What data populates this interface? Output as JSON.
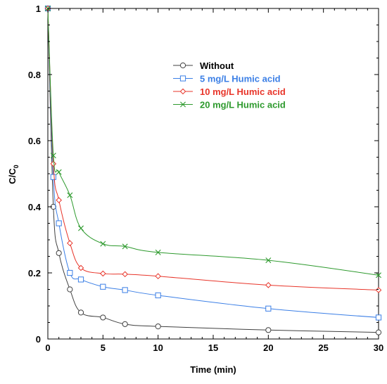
{
  "chart_data": {
    "type": "line",
    "xlabel": "Time (min)",
    "ylabel": "C/C",
    "ylabel_subscript": "0",
    "xlim": [
      0,
      30
    ],
    "ylim": [
      0,
      1
    ],
    "xticks": [
      0,
      5,
      10,
      15,
      20,
      25,
      30
    ],
    "yticks": [
      0,
      0.2,
      0.4,
      0.6,
      0.8,
      1
    ],
    "ytick_labels": [
      "0",
      "0.2",
      "0.4",
      "0.6",
      "0.8",
      "1"
    ],
    "grid": false,
    "legend_position": "top-right",
    "series": [
      {
        "name": "Without",
        "color": "#404040",
        "marker": "circle",
        "x": [
          0,
          0.5,
          1,
          2,
          3,
          5,
          7,
          10,
          20,
          30
        ],
        "y": [
          1.0,
          0.4,
          0.26,
          0.15,
          0.08,
          0.065,
          0.045,
          0.038,
          0.027,
          0.02
        ]
      },
      {
        "name": "5 mg/L Humic acid",
        "color": "#3b7fe6",
        "marker": "square",
        "x": [
          0,
          0.5,
          1,
          2,
          3,
          5,
          7,
          10,
          20,
          30
        ],
        "y": [
          1.0,
          0.49,
          0.35,
          0.2,
          0.18,
          0.158,
          0.148,
          0.132,
          0.092,
          0.065
        ]
      },
      {
        "name": "10 mg/L Humic acid",
        "color": "#e8352a",
        "marker": "diamond",
        "x": [
          0,
          0.5,
          1,
          2,
          3,
          5,
          7,
          10,
          20,
          30
        ],
        "y": [
          1.0,
          0.53,
          0.42,
          0.29,
          0.215,
          0.198,
          0.196,
          0.19,
          0.163,
          0.148
        ]
      },
      {
        "name": "20 mg/L Humic acid",
        "color": "#2e9a2e",
        "marker": "x",
        "x": [
          0,
          0.5,
          1,
          2,
          3,
          5,
          7,
          10,
          20,
          30
        ],
        "y": [
          1.0,
          0.555,
          0.505,
          0.435,
          0.335,
          0.288,
          0.28,
          0.262,
          0.238,
          0.193
        ]
      }
    ]
  }
}
